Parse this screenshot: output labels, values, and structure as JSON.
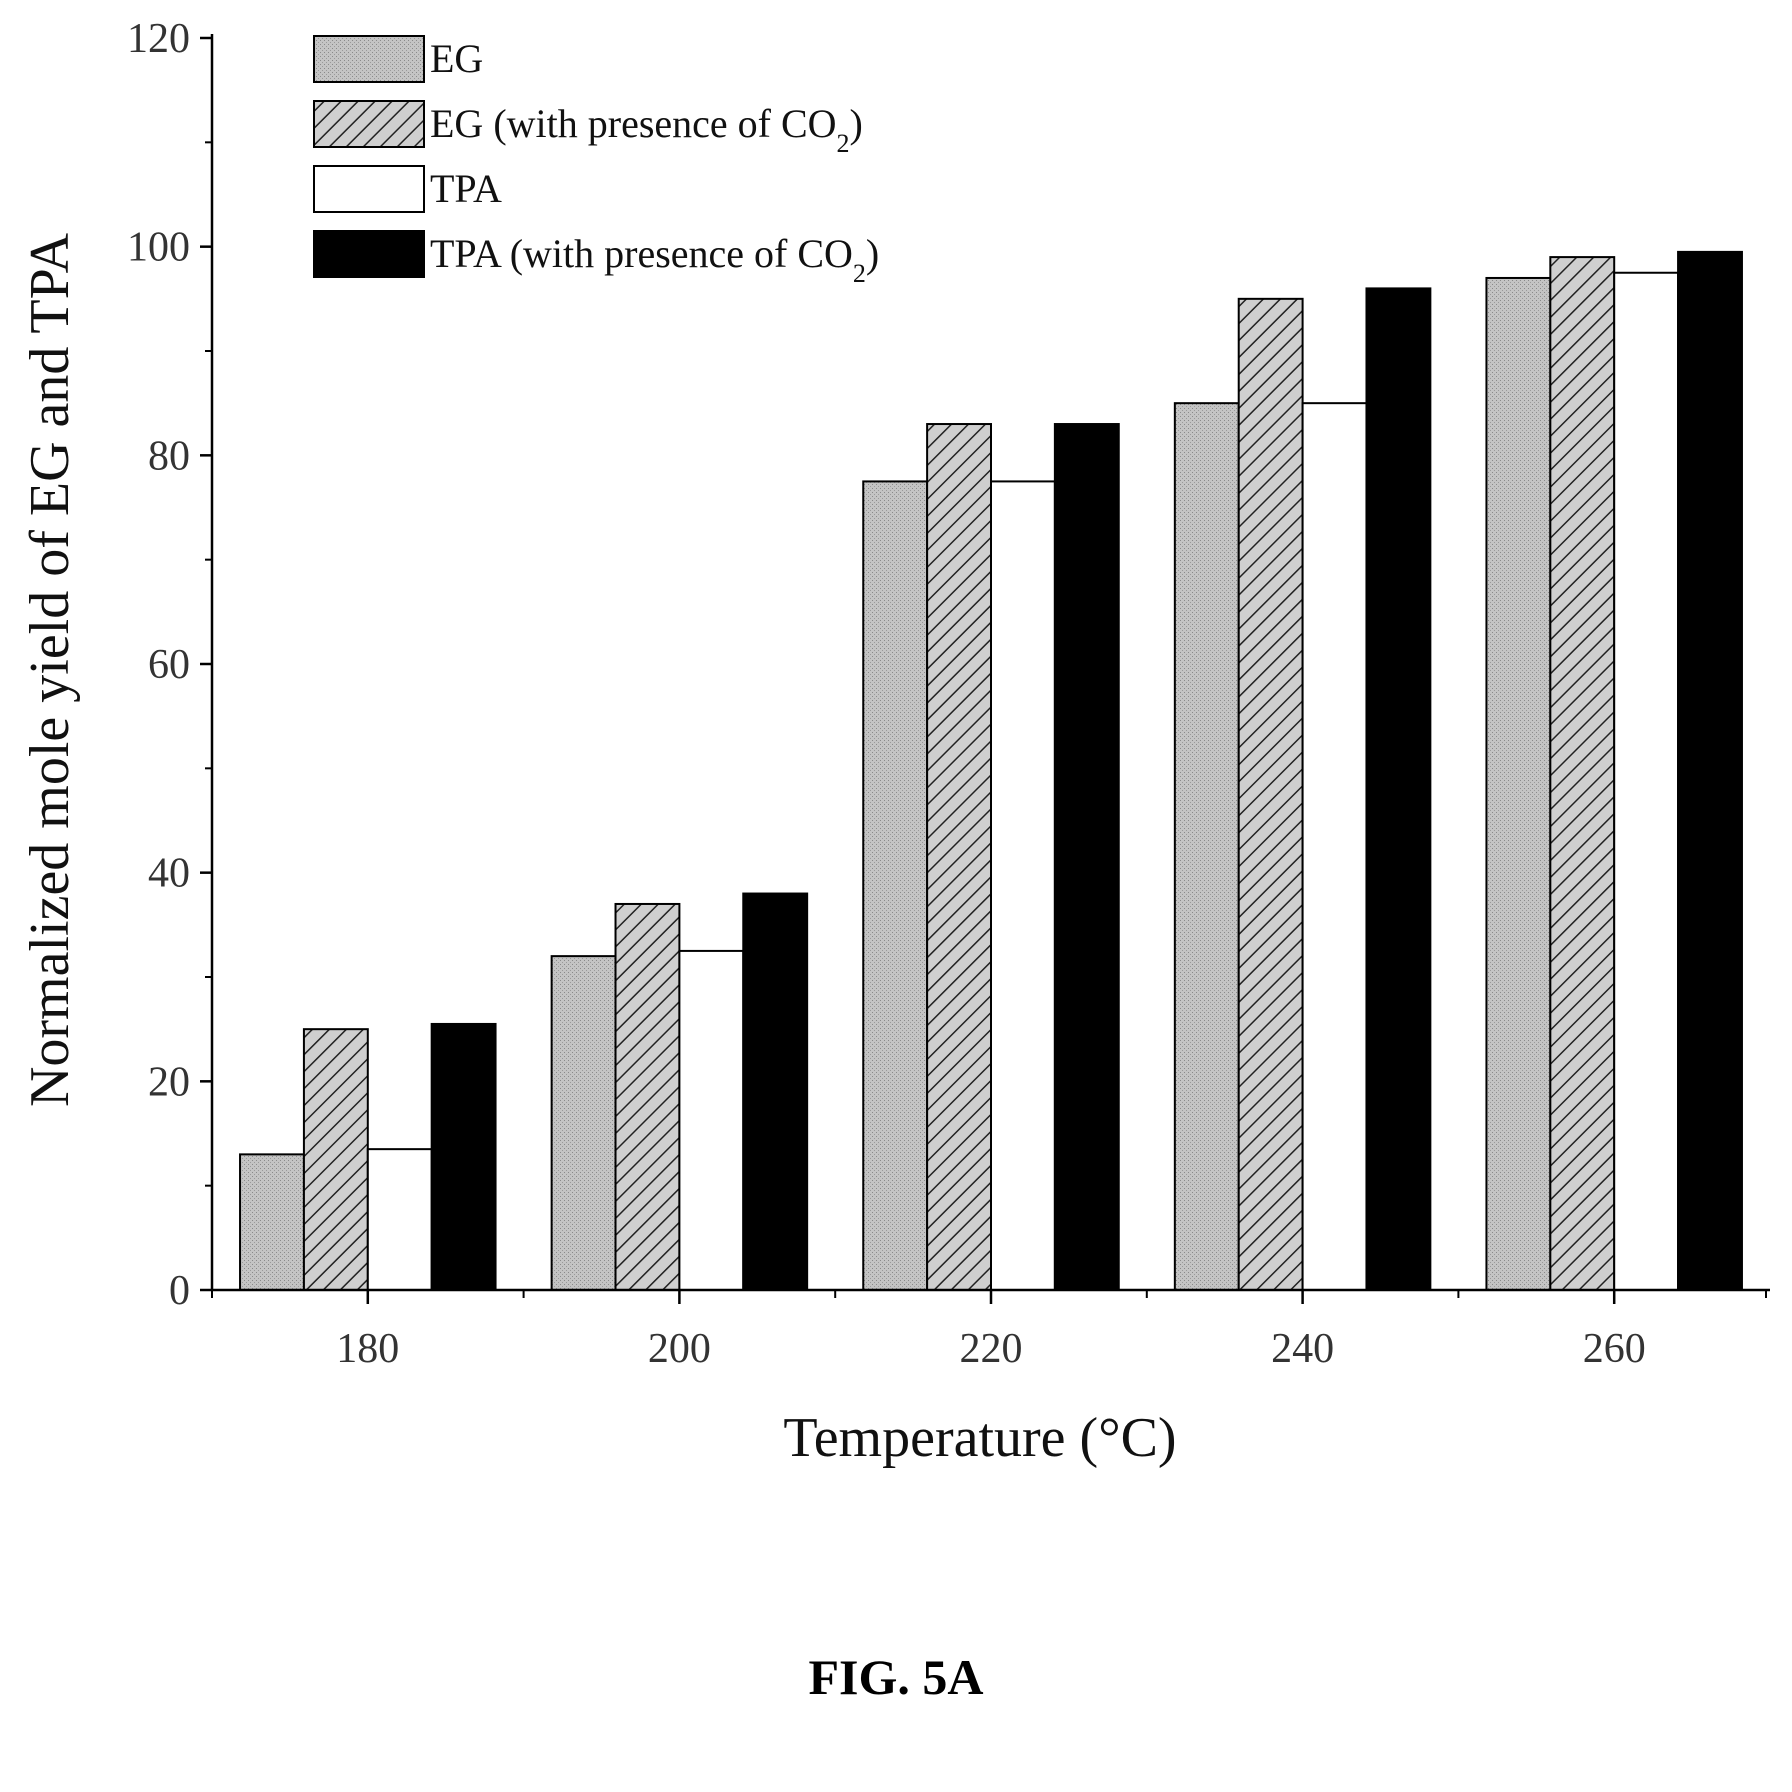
{
  "chart_data": {
    "type": "bar",
    "categories": [
      "180",
      "200",
      "220",
      "240",
      "260"
    ],
    "series": [
      {
        "name": "EG",
        "values": [
          13,
          32,
          77.5,
          85,
          97
        ]
      },
      {
        "name": "EG (with presence of CO2)",
        "values": [
          25,
          37,
          83,
          95,
          99
        ]
      },
      {
        "name": "TPA",
        "values": [
          13.5,
          32.5,
          77.5,
          85,
          97.5
        ]
      },
      {
        "name": "TPA (with presence of CO2)",
        "values": [
          25.5,
          38,
          83,
          96,
          99.5
        ]
      }
    ],
    "legend_display": [
      {
        "main": "EG",
        "sub": "",
        "suffix": ""
      },
      {
        "main": "EG (with presence of CO",
        "sub": "2",
        "suffix": ")"
      },
      {
        "main": "TPA",
        "sub": "",
        "suffix": ""
      },
      {
        "main": "TPA (with presence of CO",
        "sub": "2",
        "suffix": ")"
      }
    ],
    "title": "",
    "xlabel": "Temperature (°C)",
    "ylabel": "Normalized mole yield of EG and TPA",
    "ylim": [
      0,
      120
    ],
    "yticks": [
      0,
      20,
      40,
      60,
      80,
      100,
      120
    ],
    "grid": false,
    "legend_position": "top-left",
    "series_fills": [
      "stipple-gray",
      "hatched",
      "white",
      "black"
    ]
  },
  "caption": "FIG. 5A"
}
